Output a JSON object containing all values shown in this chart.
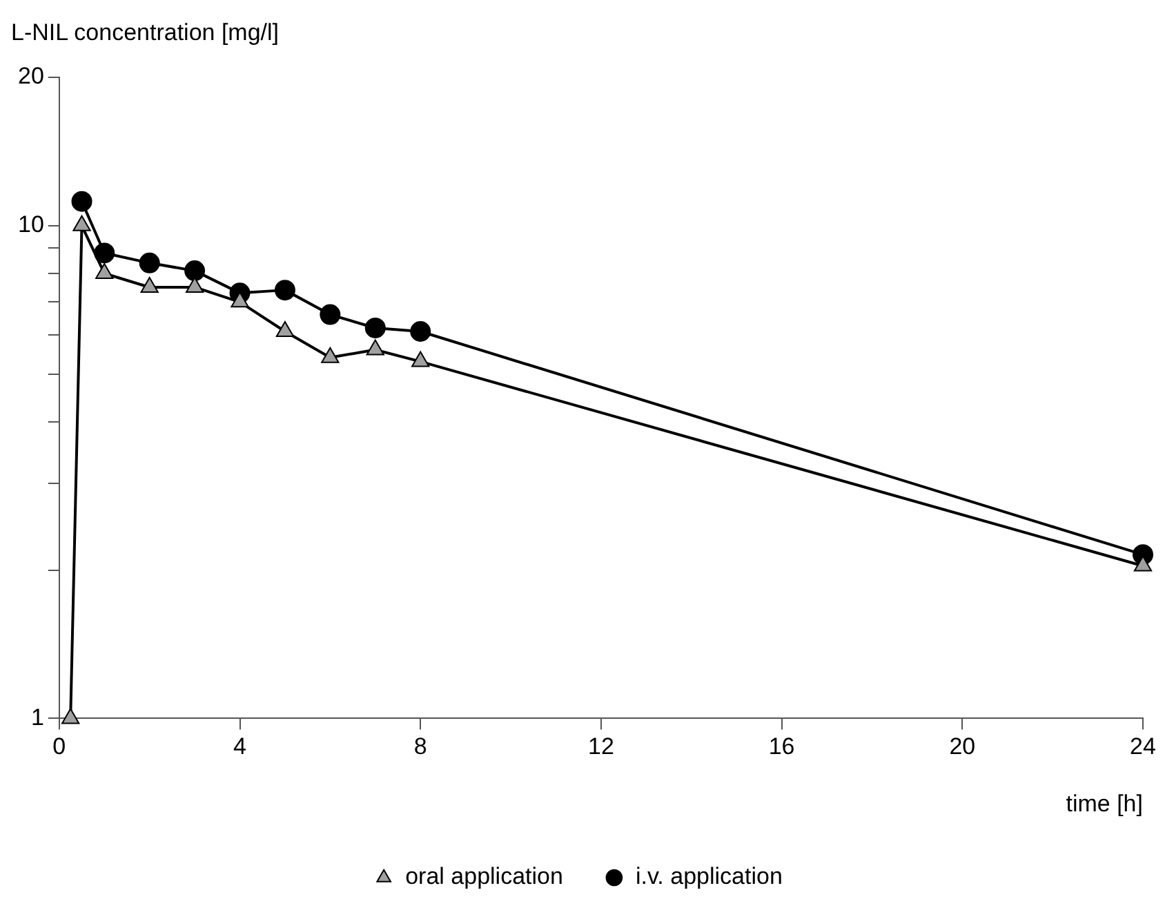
{
  "chart_data": {
    "type": "line",
    "xlabel": "time [h]",
    "ylabel": "L-NIL concentration [mg/l]",
    "log": "y",
    "xlim": [
      0,
      24
    ],
    "xticks": [
      0,
      4,
      8,
      12,
      16,
      20,
      24
    ],
    "ylim": [
      1,
      20
    ],
    "yticks": [
      1,
      {
        "value": 2,
        "label": null
      },
      {
        "value": 3,
        "label": null
      },
      {
        "value": 4,
        "label": null
      },
      {
        "value": 5,
        "label": null
      },
      {
        "value": 6,
        "label": null
      },
      {
        "value": 7,
        "label": null
      },
      {
        "value": 8,
        "label": null
      },
      {
        "value": 9,
        "label": null
      },
      10,
      20
    ],
    "grid": false,
    "legend": "bottom",
    "line_style": "solid",
    "series": [
      {
        "name": "i.v. application",
        "color": "#000000",
        "marker": "circle",
        "x": [
          0.5,
          1,
          2,
          3,
          4,
          5,
          6,
          7,
          8,
          24
        ],
        "values": [
          11.2,
          8.8,
          8.4,
          8.1,
          7.3,
          7.4,
          6.6,
          6.2,
          6.1,
          2.15
        ]
      },
      {
        "name": "oral application",
        "color": "#a0a0a0",
        "marker": "triangle",
        "x": [
          0.25,
          0.5,
          1,
          2,
          3,
          4,
          5,
          6,
          7,
          8,
          24
        ],
        "values": [
          1,
          10,
          8,
          7.5,
          7.5,
          7,
          6.1,
          5.4,
          5.6,
          5.3,
          2.04
        ]
      }
    ]
  }
}
